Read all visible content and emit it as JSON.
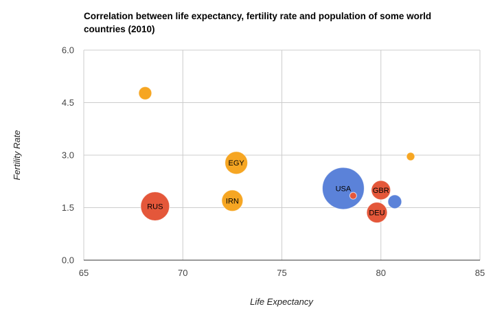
{
  "chart_data": {
    "type": "bubble",
    "title_lines": [
      "Correlation between life expectancy, fertility rate and population of some world",
      "countries (2010)"
    ],
    "xlabel": "Life Expectancy",
    "ylabel": "Fertility Rate",
    "xlim": [
      65,
      85
    ],
    "ylim": [
      0,
      6
    ],
    "x_ticks": [
      "65",
      "70",
      "75",
      "80",
      "85"
    ],
    "y_ticks": [
      "0.0",
      "1.5",
      "3.0",
      "4.5",
      "6.0"
    ],
    "grid": true,
    "colors": {
      "orange": "#f6a623",
      "red": "#e4573a",
      "blue": "#5b82d9"
    },
    "points": [
      {
        "label": "",
        "x": 68.1,
        "y": 4.77,
        "size": 9.5,
        "color": "orange"
      },
      {
        "label": "EGY",
        "x": 72.7,
        "y": 2.78,
        "size": 16.5,
        "color": "orange"
      },
      {
        "label": "IRN",
        "x": 72.5,
        "y": 1.7,
        "size": 15.5,
        "color": "orange"
      },
      {
        "label": "",
        "x": 81.5,
        "y": 2.96,
        "size": 6.0,
        "color": "orange"
      },
      {
        "label": "RUS",
        "x": 68.6,
        "y": 1.54,
        "size": 21.0,
        "color": "red"
      },
      {
        "label": "GBR",
        "x": 80.0,
        "y": 2.0,
        "size": 14.0,
        "color": "red"
      },
      {
        "label": "DEU",
        "x": 79.8,
        "y": 1.36,
        "size": 15.0,
        "color": "red"
      },
      {
        "label": "",
        "x": 78.6,
        "y": 1.84,
        "size": 5.0,
        "color": "red"
      },
      {
        "label": "USA",
        "x": 78.1,
        "y": 2.05,
        "size": 30.5,
        "color": "blue"
      },
      {
        "label": "",
        "x": 80.7,
        "y": 1.67,
        "size": 10.0,
        "color": "blue"
      }
    ]
  }
}
